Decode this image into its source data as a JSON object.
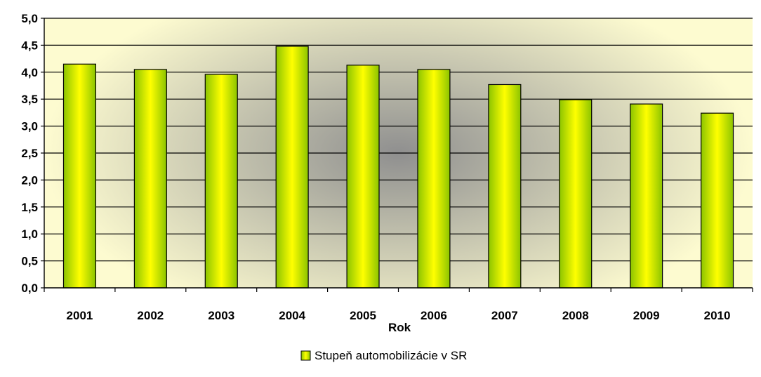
{
  "chart_data": {
    "type": "bar",
    "title": "",
    "xlabel": "Rok",
    "ylabel": "",
    "categories": [
      "2001",
      "2002",
      "2003",
      "2004",
      "2005",
      "2006",
      "2007",
      "2008",
      "2009",
      "2010"
    ],
    "series": [
      {
        "name": "Stupeň automobilizácie v SR",
        "values": [
          4.15,
          4.05,
          3.96,
          4.48,
          4.13,
          4.05,
          3.77,
          3.49,
          3.41,
          3.24
        ]
      }
    ],
    "ylim": [
      0,
      5
    ],
    "y_ticks": [
      "0,0",
      "0,5",
      "1,0",
      "1,5",
      "2,0",
      "2,5",
      "3,0",
      "3,5",
      "4,0",
      "4,5",
      "5,0"
    ],
    "y_tick_values": [
      0,
      0.5,
      1,
      1.5,
      2,
      2.5,
      3,
      3.5,
      4,
      4.5,
      5
    ],
    "grid": true,
    "legend_position": "bottom",
    "colors": {
      "bar_edge": "#8cc400",
      "bar_center": "#ffff00",
      "bar_outline": "#000000",
      "plot_bg_outer": "#fdfbd0",
      "plot_bg_center": "#8f8f8f",
      "grid": "#000000"
    }
  }
}
